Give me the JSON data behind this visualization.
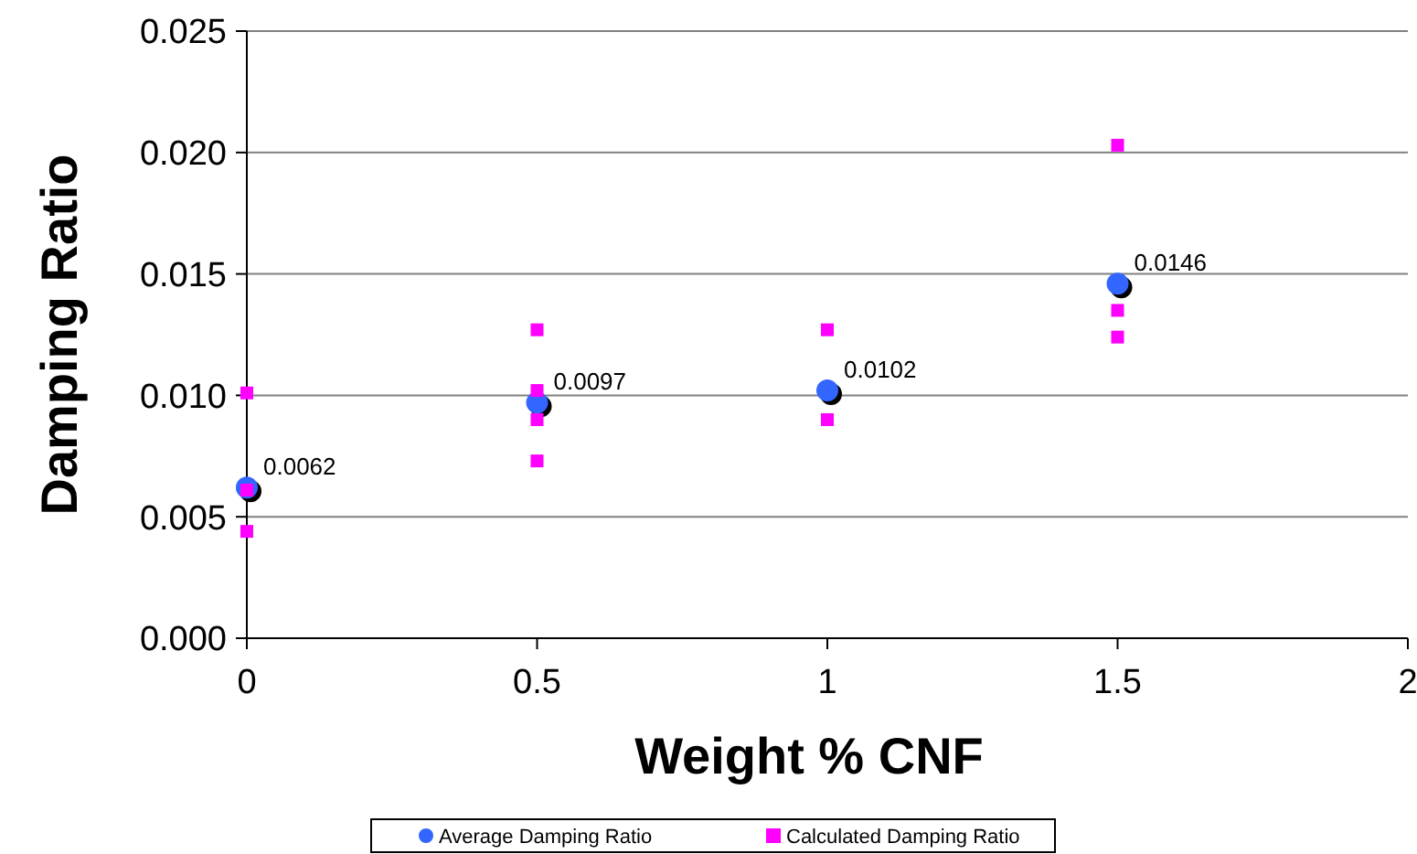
{
  "chart_data": {
    "type": "scatter",
    "xlabel": "Weight % CNF",
    "ylabel": "Damping Ratio",
    "xlim": [
      0,
      2
    ],
    "xticks": [
      0,
      0.5,
      1,
      1.5,
      2
    ],
    "ylim": [
      0,
      0.025
    ],
    "yticks": [
      {
        "value": 0,
        "label": "0.000"
      },
      {
        "value": 0.005,
        "label": "0.005"
      },
      {
        "value": 0.01,
        "label": "0.010"
      },
      {
        "value": 0.015,
        "label": "0.015"
      },
      {
        "value": 0.02,
        "label": "0.020"
      },
      {
        "value": 0.025,
        "label": "0.025"
      }
    ],
    "grid": "y",
    "legend": "bottom",
    "series": [
      {
        "name": "Average Damping Ratio",
        "color": "#3366ff",
        "marker": "circle",
        "x": [
          0,
          0.5,
          1,
          1.5
        ],
        "values": [
          0.0062,
          0.0097,
          0.0102,
          0.0146
        ],
        "value_labels": [
          "0.0062",
          "0.0097",
          "0.0102",
          "0.0146"
        ]
      },
      {
        "name": "Calculated Damping Ratio",
        "color": "#ff00ff",
        "marker": "square",
        "x": [
          0,
          0,
          0,
          0.5,
          0.5,
          0.5,
          0.5,
          1,
          1,
          1.5,
          1.5,
          1.5
        ],
        "values": [
          0.0101,
          0.0061,
          0.0044,
          0.0127,
          0.0102,
          0.009,
          0.0073,
          0.0127,
          0.009,
          0.0203,
          0.0135,
          0.0124
        ]
      }
    ]
  }
}
